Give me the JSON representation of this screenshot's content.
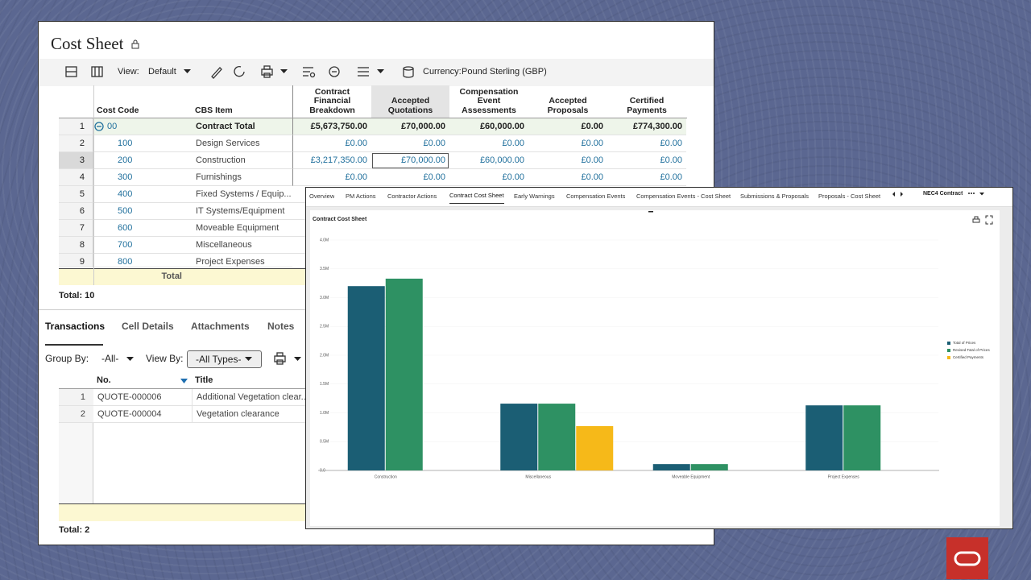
{
  "cost_sheet": {
    "title": "Cost Sheet",
    "toolbar": {
      "view_label": "View:",
      "view_value": "Default",
      "currency_label": "Currency:",
      "currency_value": "Pound Sterling (GBP)"
    },
    "table": {
      "headers": [
        "Cost Code",
        "CBS Item",
        "Contract Financial Breakdown",
        "Accepted Quotations",
        "Compensation Event Assessments",
        "Accepted Proposals",
        "Certified Payments"
      ],
      "rows": [
        [
          "1",
          "00",
          "Contract Total",
          "£5,673,750.00",
          "£70,000.00",
          "£60,000.00",
          "£0.00",
          "£774,300.00"
        ],
        [
          "2",
          "100",
          "Design Services",
          "£0.00",
          "£0.00",
          "£0.00",
          "£0.00",
          "£0.00"
        ],
        [
          "3",
          "200",
          "Construction",
          "£3,217,350.00",
          "£70,000.00",
          "£60,000.00",
          "£0.00",
          "£0.00"
        ],
        [
          "4",
          "300",
          "Furnishings",
          "£0.00",
          "£0.00",
          "£0.00",
          "£0.00",
          "£0.00"
        ],
        [
          "5",
          "400",
          "Fixed Systems / Equip..."
        ],
        [
          "6",
          "500",
          "IT Systems/Equipment"
        ],
        [
          "7",
          "600",
          "Moveable Equipment"
        ],
        [
          "8",
          "700",
          "Miscellaneous"
        ],
        [
          "9",
          "800",
          "Project Expenses"
        ]
      ],
      "total_label": "Total"
    },
    "row_count": "Total: 10",
    "tabs": [
      "Transactions",
      "Cell Details",
      "Attachments",
      "Notes"
    ],
    "filters": {
      "group_by_label": "Group By:",
      "group_by_value": "-All-",
      "view_by_label": "View By:",
      "view_by_value": "-All Types-"
    },
    "transactions": {
      "headers": [
        "No.",
        "Title"
      ],
      "rows": [
        [
          "1",
          "QUOTE-000006",
          "Additional Vegetation clear..."
        ],
        [
          "2",
          "QUOTE-000004",
          "Vegetation clearance"
        ]
      ]
    },
    "transaction_count": "Total: 2"
  },
  "dashboard": {
    "tabs": [
      "Overview",
      "PM Actions",
      "Contractor Actions",
      "Contract Cost Sheet",
      "Early Warnings",
      "Compensation Events",
      "Compensation Events - Cost Sheet",
      "Submissions & Proposals",
      "Proposals - Cost Sheet"
    ],
    "contract_menu": "NEC4 Contract"
  },
  "chart_data": {
    "type": "bar",
    "title": "Contract Cost Sheet",
    "categories": [
      "Construction",
      "Miscellaneous",
      "Moveable Equipment",
      "Project Expenses"
    ],
    "series": [
      {
        "name": "Total of Prices",
        "color": "#1b5e74",
        "values": [
          3200000,
          1160000,
          110000,
          1130000
        ]
      },
      {
        "name": "Revised Total of Prices",
        "color": "#2e9163",
        "values": [
          3330000,
          1160000,
          110000,
          1130000
        ]
      },
      {
        "name": "Certified Payments",
        "color": "#f6b919",
        "values": [
          0,
          770000,
          0,
          0
        ]
      }
    ],
    "ylim": [
      0,
      4000000
    ],
    "yticks": [
      {
        "value": 0,
        "label": "0.0"
      },
      {
        "value": 500000,
        "label": "0.5M"
      },
      {
        "value": 1000000,
        "label": "1.0M"
      },
      {
        "value": 1500000,
        "label": "1.5M"
      },
      {
        "value": 2000000,
        "label": "2.0M"
      },
      {
        "value": 2500000,
        "label": "2.5M"
      },
      {
        "value": 3000000,
        "label": "3.0M"
      },
      {
        "value": 3500000,
        "label": "3.5M"
      },
      {
        "value": 4000000,
        "label": "4.0M"
      }
    ],
    "legend": "right"
  }
}
